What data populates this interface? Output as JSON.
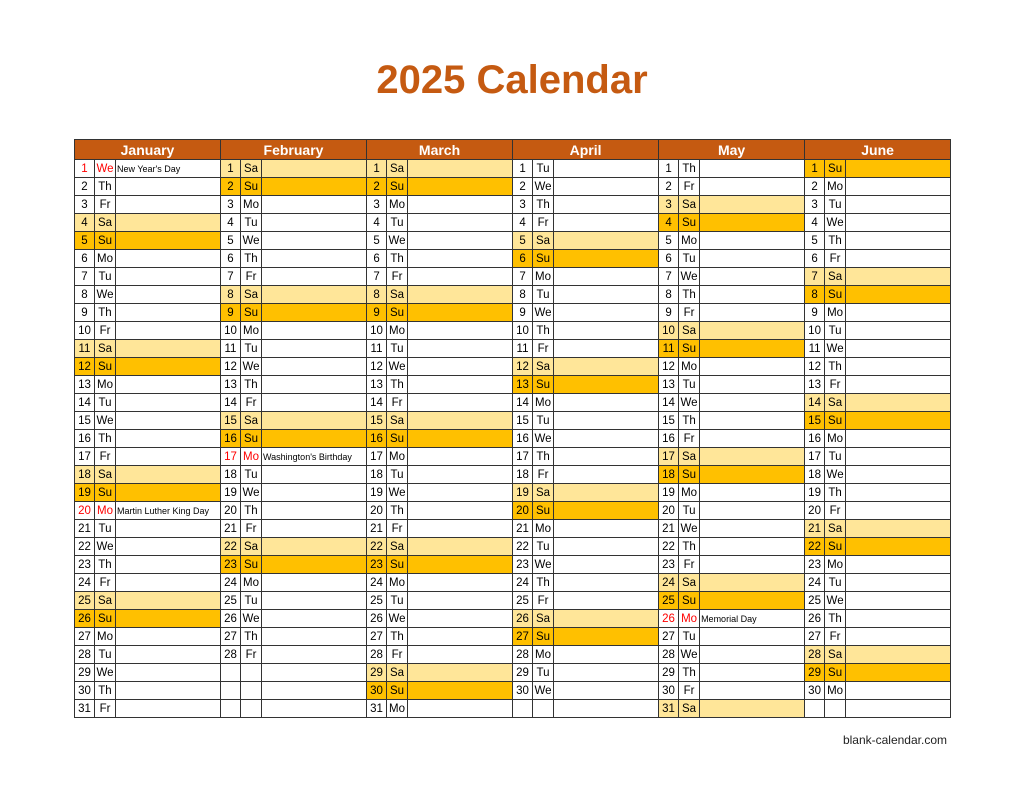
{
  "title": "2025 Calendar",
  "footer": "blank-calendar.com",
  "colors": {
    "header": "#C55A11",
    "saturday": "#FFE699",
    "sunday": "#FFC000",
    "holiday_text": "#FF0000"
  },
  "months": [
    {
      "name": "January",
      "days": [
        [
          1,
          "We",
          "New Year's Day"
        ],
        [
          2,
          "Th"
        ],
        [
          3,
          "Fr"
        ],
        [
          4,
          "Sa"
        ],
        [
          5,
          "Su"
        ],
        [
          6,
          "Mo"
        ],
        [
          7,
          "Tu"
        ],
        [
          8,
          "We"
        ],
        [
          9,
          "Th"
        ],
        [
          10,
          "Fr"
        ],
        [
          11,
          "Sa"
        ],
        [
          12,
          "Su"
        ],
        [
          13,
          "Mo"
        ],
        [
          14,
          "Tu"
        ],
        [
          15,
          "We"
        ],
        [
          16,
          "Th"
        ],
        [
          17,
          "Fr"
        ],
        [
          18,
          "Sa"
        ],
        [
          19,
          "Su"
        ],
        [
          20,
          "Mo",
          "Martin Luther King Day"
        ],
        [
          21,
          "Tu"
        ],
        [
          22,
          "We"
        ],
        [
          23,
          "Th"
        ],
        [
          24,
          "Fr"
        ],
        [
          25,
          "Sa"
        ],
        [
          26,
          "Su"
        ],
        [
          27,
          "Mo"
        ],
        [
          28,
          "Tu"
        ],
        [
          29,
          "We"
        ],
        [
          30,
          "Th"
        ],
        [
          31,
          "Fr"
        ]
      ]
    },
    {
      "name": "February",
      "days": [
        [
          1,
          "Sa"
        ],
        [
          2,
          "Su"
        ],
        [
          3,
          "Mo"
        ],
        [
          4,
          "Tu"
        ],
        [
          5,
          "We"
        ],
        [
          6,
          "Th"
        ],
        [
          7,
          "Fr"
        ],
        [
          8,
          "Sa"
        ],
        [
          9,
          "Su"
        ],
        [
          10,
          "Mo"
        ],
        [
          11,
          "Tu"
        ],
        [
          12,
          "We"
        ],
        [
          13,
          "Th"
        ],
        [
          14,
          "Fr"
        ],
        [
          15,
          "Sa"
        ],
        [
          16,
          "Su"
        ],
        [
          17,
          "Mo",
          "Washington's Birthday"
        ],
        [
          18,
          "Tu"
        ],
        [
          19,
          "We"
        ],
        [
          20,
          "Th"
        ],
        [
          21,
          "Fr"
        ],
        [
          22,
          "Sa"
        ],
        [
          23,
          "Su"
        ],
        [
          24,
          "Mo"
        ],
        [
          25,
          "Tu"
        ],
        [
          26,
          "We"
        ],
        [
          27,
          "Th"
        ],
        [
          28,
          "Fr"
        ]
      ]
    },
    {
      "name": "March",
      "days": [
        [
          1,
          "Sa"
        ],
        [
          2,
          "Su"
        ],
        [
          3,
          "Mo"
        ],
        [
          4,
          "Tu"
        ],
        [
          5,
          "We"
        ],
        [
          6,
          "Th"
        ],
        [
          7,
          "Fr"
        ],
        [
          8,
          "Sa"
        ],
        [
          9,
          "Su"
        ],
        [
          10,
          "Mo"
        ],
        [
          11,
          "Tu"
        ],
        [
          12,
          "We"
        ],
        [
          13,
          "Th"
        ],
        [
          14,
          "Fr"
        ],
        [
          15,
          "Sa"
        ],
        [
          16,
          "Su"
        ],
        [
          17,
          "Mo"
        ],
        [
          18,
          "Tu"
        ],
        [
          19,
          "We"
        ],
        [
          20,
          "Th"
        ],
        [
          21,
          "Fr"
        ],
        [
          22,
          "Sa"
        ],
        [
          23,
          "Su"
        ],
        [
          24,
          "Mo"
        ],
        [
          25,
          "Tu"
        ],
        [
          26,
          "We"
        ],
        [
          27,
          "Th"
        ],
        [
          28,
          "Fr"
        ],
        [
          29,
          "Sa"
        ],
        [
          30,
          "Su"
        ],
        [
          31,
          "Mo"
        ]
      ]
    },
    {
      "name": "April",
      "days": [
        [
          1,
          "Tu"
        ],
        [
          2,
          "We"
        ],
        [
          3,
          "Th"
        ],
        [
          4,
          "Fr"
        ],
        [
          5,
          "Sa"
        ],
        [
          6,
          "Su"
        ],
        [
          7,
          "Mo"
        ],
        [
          8,
          "Tu"
        ],
        [
          9,
          "We"
        ],
        [
          10,
          "Th"
        ],
        [
          11,
          "Fr"
        ],
        [
          12,
          "Sa"
        ],
        [
          13,
          "Su"
        ],
        [
          14,
          "Mo"
        ],
        [
          15,
          "Tu"
        ],
        [
          16,
          "We"
        ],
        [
          17,
          "Th"
        ],
        [
          18,
          "Fr"
        ],
        [
          19,
          "Sa"
        ],
        [
          20,
          "Su"
        ],
        [
          21,
          "Mo"
        ],
        [
          22,
          "Tu"
        ],
        [
          23,
          "We"
        ],
        [
          24,
          "Th"
        ],
        [
          25,
          "Fr"
        ],
        [
          26,
          "Sa"
        ],
        [
          27,
          "Su"
        ],
        [
          28,
          "Mo"
        ],
        [
          29,
          "Tu"
        ],
        [
          30,
          "We"
        ]
      ]
    },
    {
      "name": "May",
      "days": [
        [
          1,
          "Th"
        ],
        [
          2,
          "Fr"
        ],
        [
          3,
          "Sa"
        ],
        [
          4,
          "Su"
        ],
        [
          5,
          "Mo"
        ],
        [
          6,
          "Tu"
        ],
        [
          7,
          "We"
        ],
        [
          8,
          "Th"
        ],
        [
          9,
          "Fr"
        ],
        [
          10,
          "Sa"
        ],
        [
          11,
          "Su"
        ],
        [
          12,
          "Mo"
        ],
        [
          13,
          "Tu"
        ],
        [
          14,
          "We"
        ],
        [
          15,
          "Th"
        ],
        [
          16,
          "Fr"
        ],
        [
          17,
          "Sa"
        ],
        [
          18,
          "Su"
        ],
        [
          19,
          "Mo"
        ],
        [
          20,
          "Tu"
        ],
        [
          21,
          "We"
        ],
        [
          22,
          "Th"
        ],
        [
          23,
          "Fr"
        ],
        [
          24,
          "Sa"
        ],
        [
          25,
          "Su"
        ],
        [
          26,
          "Mo",
          "Memorial Day"
        ],
        [
          27,
          "Tu"
        ],
        [
          28,
          "We"
        ],
        [
          29,
          "Th"
        ],
        [
          30,
          "Fr"
        ],
        [
          31,
          "Sa"
        ]
      ]
    },
    {
      "name": "June",
      "days": [
        [
          1,
          "Su"
        ],
        [
          2,
          "Mo"
        ],
        [
          3,
          "Tu"
        ],
        [
          4,
          "We"
        ],
        [
          5,
          "Th"
        ],
        [
          6,
          "Fr"
        ],
        [
          7,
          "Sa"
        ],
        [
          8,
          "Su"
        ],
        [
          9,
          "Mo"
        ],
        [
          10,
          "Tu"
        ],
        [
          11,
          "We"
        ],
        [
          12,
          "Th"
        ],
        [
          13,
          "Fr"
        ],
        [
          14,
          "Sa"
        ],
        [
          15,
          "Su"
        ],
        [
          16,
          "Mo"
        ],
        [
          17,
          "Tu"
        ],
        [
          18,
          "We"
        ],
        [
          19,
          "Th"
        ],
        [
          20,
          "Fr"
        ],
        [
          21,
          "Sa"
        ],
        [
          22,
          "Su"
        ],
        [
          23,
          "Mo"
        ],
        [
          24,
          "Tu"
        ],
        [
          25,
          "We"
        ],
        [
          26,
          "Th"
        ],
        [
          27,
          "Fr"
        ],
        [
          28,
          "Sa"
        ],
        [
          29,
          "Su"
        ],
        [
          30,
          "Mo"
        ]
      ]
    }
  ]
}
